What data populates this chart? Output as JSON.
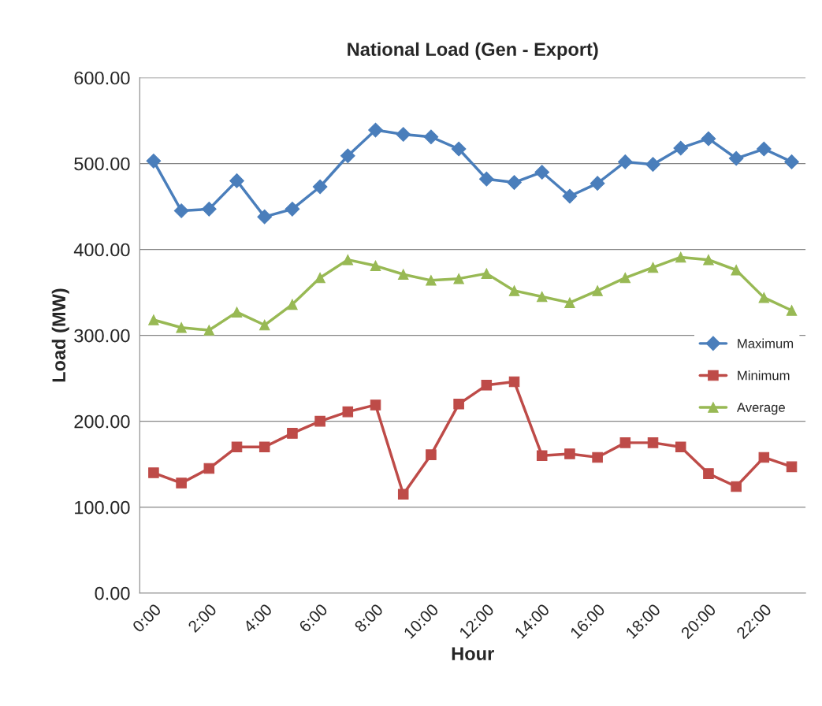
{
  "chart_data": {
    "type": "line",
    "title": "National Load (Gen - Export)",
    "xlabel": "Hour",
    "ylabel": "Load (MW)",
    "categories": [
      "0:00",
      null,
      "2:00",
      null,
      "4:00",
      null,
      "6:00",
      null,
      "8:00",
      null,
      "10:00",
      null,
      "12:00",
      null,
      "14:00",
      null,
      "16:00",
      null,
      "18:00",
      null,
      "20:00",
      null,
      "22:00",
      null
    ],
    "series": [
      {
        "name": "Maximum",
        "color": "#4a7ebb",
        "marker": "diamond",
        "values": [
          503,
          445,
          447,
          480,
          438,
          447,
          473,
          509,
          539,
          534,
          531,
          517,
          482,
          478,
          490,
          462,
          477,
          502,
          499,
          518,
          529,
          506,
          517,
          502
        ]
      },
      {
        "name": "Minimum",
        "color": "#be4b48",
        "marker": "square",
        "values": [
          140,
          128,
          145,
          170,
          170,
          186,
          200,
          211,
          219,
          115,
          161,
          220,
          242,
          246,
          160,
          162,
          158,
          175,
          175,
          170,
          139,
          124,
          158,
          147
        ]
      },
      {
        "name": "Average",
        "color": "#98b954",
        "marker": "triangle",
        "values": [
          318,
          309,
          306,
          327,
          312,
          336,
          367,
          388,
          381,
          371,
          364,
          366,
          372,
          352,
          345,
          338,
          352,
          367,
          379,
          391,
          388,
          376,
          344,
          329
        ]
      }
    ],
    "ylim": [
      0,
      600
    ],
    "yticks": [
      {
        "value": 0,
        "label": "0.00"
      },
      {
        "value": 100,
        "label": "100.00"
      },
      {
        "value": 200,
        "label": "200.00"
      },
      {
        "value": 300,
        "label": "300.00"
      },
      {
        "value": 400,
        "label": "400.00"
      },
      {
        "value": 500,
        "label": "500.00"
      },
      {
        "value": 600,
        "label": "600.00"
      }
    ],
    "grid": "y",
    "legend": "right",
    "line_style": "solid"
  }
}
